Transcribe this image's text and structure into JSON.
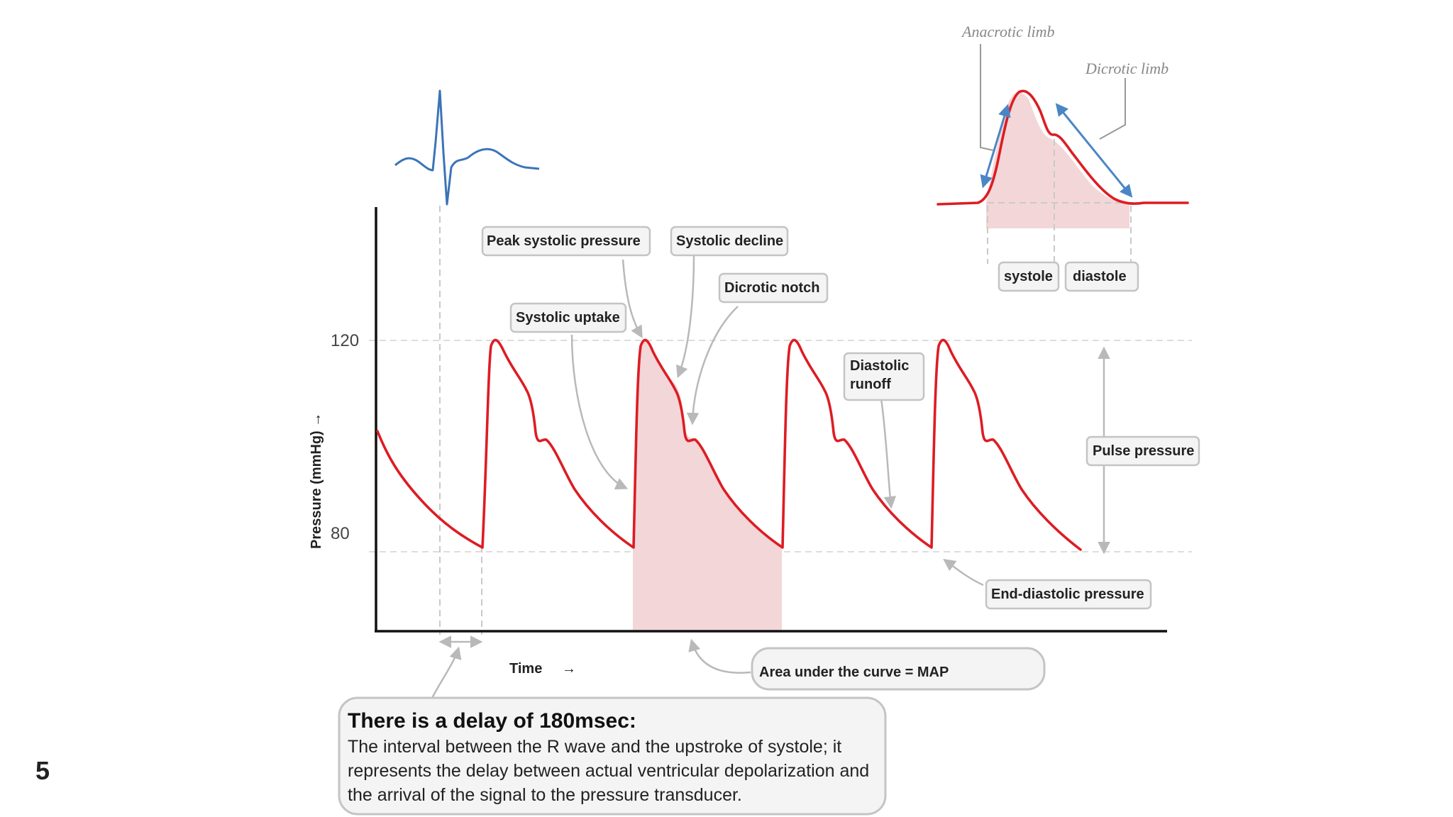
{
  "slide_number": "5",
  "axes": {
    "ylabel": "Pressure (mmHg) →",
    "xlabel": "Time",
    "xlabel_arrow": "→",
    "tick_120": "120",
    "tick_80": "80"
  },
  "labels": {
    "peak_systolic": "Peak systolic pressure",
    "systolic_decline": "Systolic decline",
    "dicrotic_notch": "Dicrotic notch",
    "systolic_uptake": "Systolic uptake",
    "diastolic_runoff_1": "Diastolic",
    "diastolic_runoff_2": "runoff",
    "pulse_pressure": "Pulse pressure",
    "end_diastolic": "End-diastolic pressure",
    "area_map": "Area under the curve = MAP"
  },
  "inset": {
    "anacrotic": "Anacrotic limb",
    "dicrotic": "Dicrotic limb",
    "systole": "systole",
    "diastole": "diastole"
  },
  "note": {
    "title": "There is a delay of 180msec:",
    "line1": "The interval between the R wave and the upstroke of systole; it",
    "line2": "represents the delay between actual ventricular depolarization and",
    "line3": "the arrival of the signal to the pressure transducer."
  },
  "colors": {
    "wave": "#dd1c23",
    "ecg": "#3b74b8",
    "shade": "#f3d6d8"
  }
}
